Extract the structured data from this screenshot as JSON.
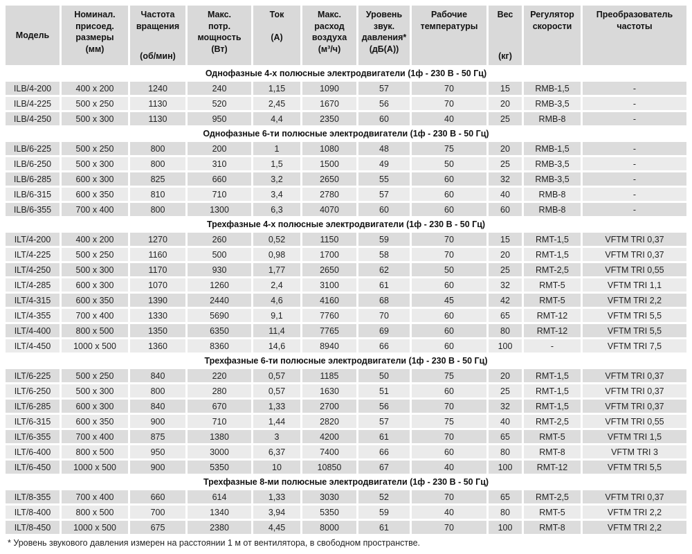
{
  "colors": {
    "header_bg": "#d9d9d9",
    "row_dark": "#dcdcdc",
    "row_light": "#ebebeb",
    "section_bg": "#ffffff",
    "text": "#222222"
  },
  "table": {
    "columns": [
      {
        "id": "model",
        "top": "Модель",
        "bottom": ""
      },
      {
        "id": "dimensions",
        "top": "Номинал.\nприсоед.\nразмеры\n(мм)",
        "bottom": ""
      },
      {
        "id": "rotation-speed",
        "top": "Частота\nвращения",
        "bottom": "(об/мин)"
      },
      {
        "id": "max-power",
        "top": "Макс.\nпотр.\nмощность\n(Вт)",
        "bottom": ""
      },
      {
        "id": "current",
        "top": "Ток\n\n(А)",
        "bottom": ""
      },
      {
        "id": "max-airflow",
        "top": "Макс.\nрасход\nвоздуха\n(м³/ч)",
        "bottom": ""
      },
      {
        "id": "noise-level",
        "top": "Уровень\nзвук.\nдавления*\n(дБ(А))",
        "bottom": ""
      },
      {
        "id": "working-temp",
        "top": "Рабочие\nтемпературы",
        "bottom": ""
      },
      {
        "id": "weight",
        "top": "Вес",
        "bottom": "(кг)"
      },
      {
        "id": "speed-regulator",
        "top": "Регулятор\nскорости",
        "bottom": ""
      },
      {
        "id": "frequency-converter",
        "top": "Преобразователь\nчастоты",
        "bottom": ""
      }
    ],
    "sections": [
      {
        "title": "Однофазные 4-х полюсные электродвигатели (1ф - 230 В - 50 Гц)",
        "rows": [
          [
            "ILB/4-200",
            "400 x 200",
            "1240",
            "240",
            "1,15",
            "1090",
            "57",
            "70",
            "15",
            "RMB-1,5",
            "-"
          ],
          [
            "ILB/4-225",
            "500 x 250",
            "1130",
            "520",
            "2,45",
            "1670",
            "56",
            "70",
            "20",
            "RMB-3,5",
            "-"
          ],
          [
            "ILB/4-250",
            "500 x 300",
            "1130",
            "950",
            "4,4",
            "2350",
            "60",
            "40",
            "25",
            "RMB-8",
            "-"
          ]
        ]
      },
      {
        "title": "Однофазные 6-ти полюсные электродвигатели (1ф - 230 В - 50 Гц)",
        "rows": [
          [
            "ILB/6-225",
            "500 x 250",
            "800",
            "200",
            "1",
            "1080",
            "48",
            "75",
            "20",
            "RMB-1,5",
            "-"
          ],
          [
            "ILB/6-250",
            "500 x 300",
            "800",
            "310",
            "1,5",
            "1500",
            "49",
            "50",
            "25",
            "RMB-3,5",
            "-"
          ],
          [
            "ILB/6-285",
            "600 x 300",
            "825",
            "660",
            "3,2",
            "2650",
            "55",
            "60",
            "32",
            "RMB-3,5",
            "-"
          ],
          [
            "ILB/6-315",
            "600 x 350",
            "810",
            "710",
            "3,4",
            "2780",
            "57",
            "60",
            "40",
            "RMB-8",
            "-"
          ],
          [
            "ILB/6-355",
            "700 x 400",
            "800",
            "1300",
            "6,3",
            "4070",
            "60",
            "60",
            "60",
            "RMB-8",
            "-"
          ]
        ]
      },
      {
        "title": "Трехфазные 4-х полюсные электродвигатели (1ф - 230 В - 50 Гц)",
        "rows": [
          [
            "ILT/4-200",
            "400 x 200",
            "1270",
            "260",
            "0,52",
            "1150",
            "59",
            "70",
            "15",
            "RMT-1,5",
            "VFTM TRI 0,37"
          ],
          [
            "ILT/4-225",
            "500 x 250",
            "1160",
            "500",
            "0,98",
            "1700",
            "58",
            "70",
            "20",
            "RMT-1,5",
            "VFTM TRI 0,37"
          ],
          [
            "ILT/4-250",
            "500 x 300",
            "1170",
            "930",
            "1,77",
            "2650",
            "62",
            "50",
            "25",
            "RMT-2,5",
            "VFTM TRI 0,55"
          ],
          [
            "ILT/4-285",
            "600 x 300",
            "1070",
            "1260",
            "2,4",
            "3100",
            "61",
            "60",
            "32",
            "RMT-5",
            "VFTM TRI 1,1"
          ],
          [
            "ILT/4-315",
            "600 x 350",
            "1390",
            "2440",
            "4,6",
            "4160",
            "68",
            "45",
            "42",
            "RMT-5",
            "VFTM TRI 2,2"
          ],
          [
            "ILT/4-355",
            "700 x 400",
            "1330",
            "5690",
            "9,1",
            "7760",
            "70",
            "60",
            "65",
            "RMT-12",
            "VFTM TRI 5,5"
          ],
          [
            "ILT/4-400",
            "800 x 500",
            "1350",
            "6350",
            "11,4",
            "7765",
            "69",
            "60",
            "80",
            "RMT-12",
            "VFTM TRI 5,5"
          ],
          [
            "ILT/4-450",
            "1000 x 500",
            "1360",
            "8360",
            "14,6",
            "8940",
            "66",
            "60",
            "100",
            "-",
            "VFTM TRI 7,5"
          ]
        ]
      },
      {
        "title": "Трехфазные 6-ти полюсные электродвигатели (1ф - 230 В - 50 Гц)",
        "rows": [
          [
            "ILT/6-225",
            "500 x 250",
            "840",
            "220",
            "0,57",
            "1185",
            "50",
            "75",
            "20",
            "RMT-1,5",
            "VFTM TRI 0,37"
          ],
          [
            "ILT/6-250",
            "500 x 300",
            "800",
            "280",
            "0,57",
            "1630",
            "51",
            "60",
            "25",
            "RMT-1,5",
            "VFTM TRI 0,37"
          ],
          [
            "ILT/6-285",
            "600 x 300",
            "840",
            "670",
            "1,33",
            "2700",
            "56",
            "70",
            "32",
            "RMT-1,5",
            "VFTM TRI 0,37"
          ],
          [
            "ILT/6-315",
            "600 x 350",
            "900",
            "710",
            "1,44",
            "2820",
            "57",
            "75",
            "40",
            "RMT-2,5",
            "VFTM TRI 0,55"
          ],
          [
            "ILT/6-355",
            "700 x 400",
            "875",
            "1380",
            "3",
            "4200",
            "61",
            "70",
            "65",
            "RMT-5",
            "VFTM TRI 1,5"
          ],
          [
            "ILT/6-400",
            "800 x 500",
            "950",
            "3000",
            "6,37",
            "7400",
            "66",
            "60",
            "80",
            "RMT-8",
            "VFTM TRI 3"
          ],
          [
            "ILT/6-450",
            "1000 x 500",
            "900",
            "5350",
            "10",
            "10850",
            "67",
            "40",
            "100",
            "RMT-12",
            "VFTM TRI 5,5"
          ]
        ]
      },
      {
        "title": "Трехфазные 8-ми полюсные электродвигатели (1ф - 230 В - 50 Гц)",
        "rows": [
          [
            "ILT/8-355",
            "700 x 400",
            "660",
            "614",
            "1,33",
            "3030",
            "52",
            "70",
            "65",
            "RMT-2,5",
            "VFTM TRI 0,37"
          ],
          [
            "ILT/8-400",
            "800 x 500",
            "700",
            "1340",
            "3,94",
            "5350",
            "59",
            "40",
            "80",
            "RMT-5",
            "VFTM TRI 2,2"
          ],
          [
            "ILT/8-450",
            "1000 x 500",
            "675",
            "2380",
            "4,45",
            "8000",
            "61",
            "70",
            "100",
            "RMT-8",
            "VFTM TRI 2,2"
          ]
        ]
      }
    ]
  },
  "footnote": "* Уровень звукового давления измерен на расстоянии 1 м от вентилятора, в свободном пространстве."
}
